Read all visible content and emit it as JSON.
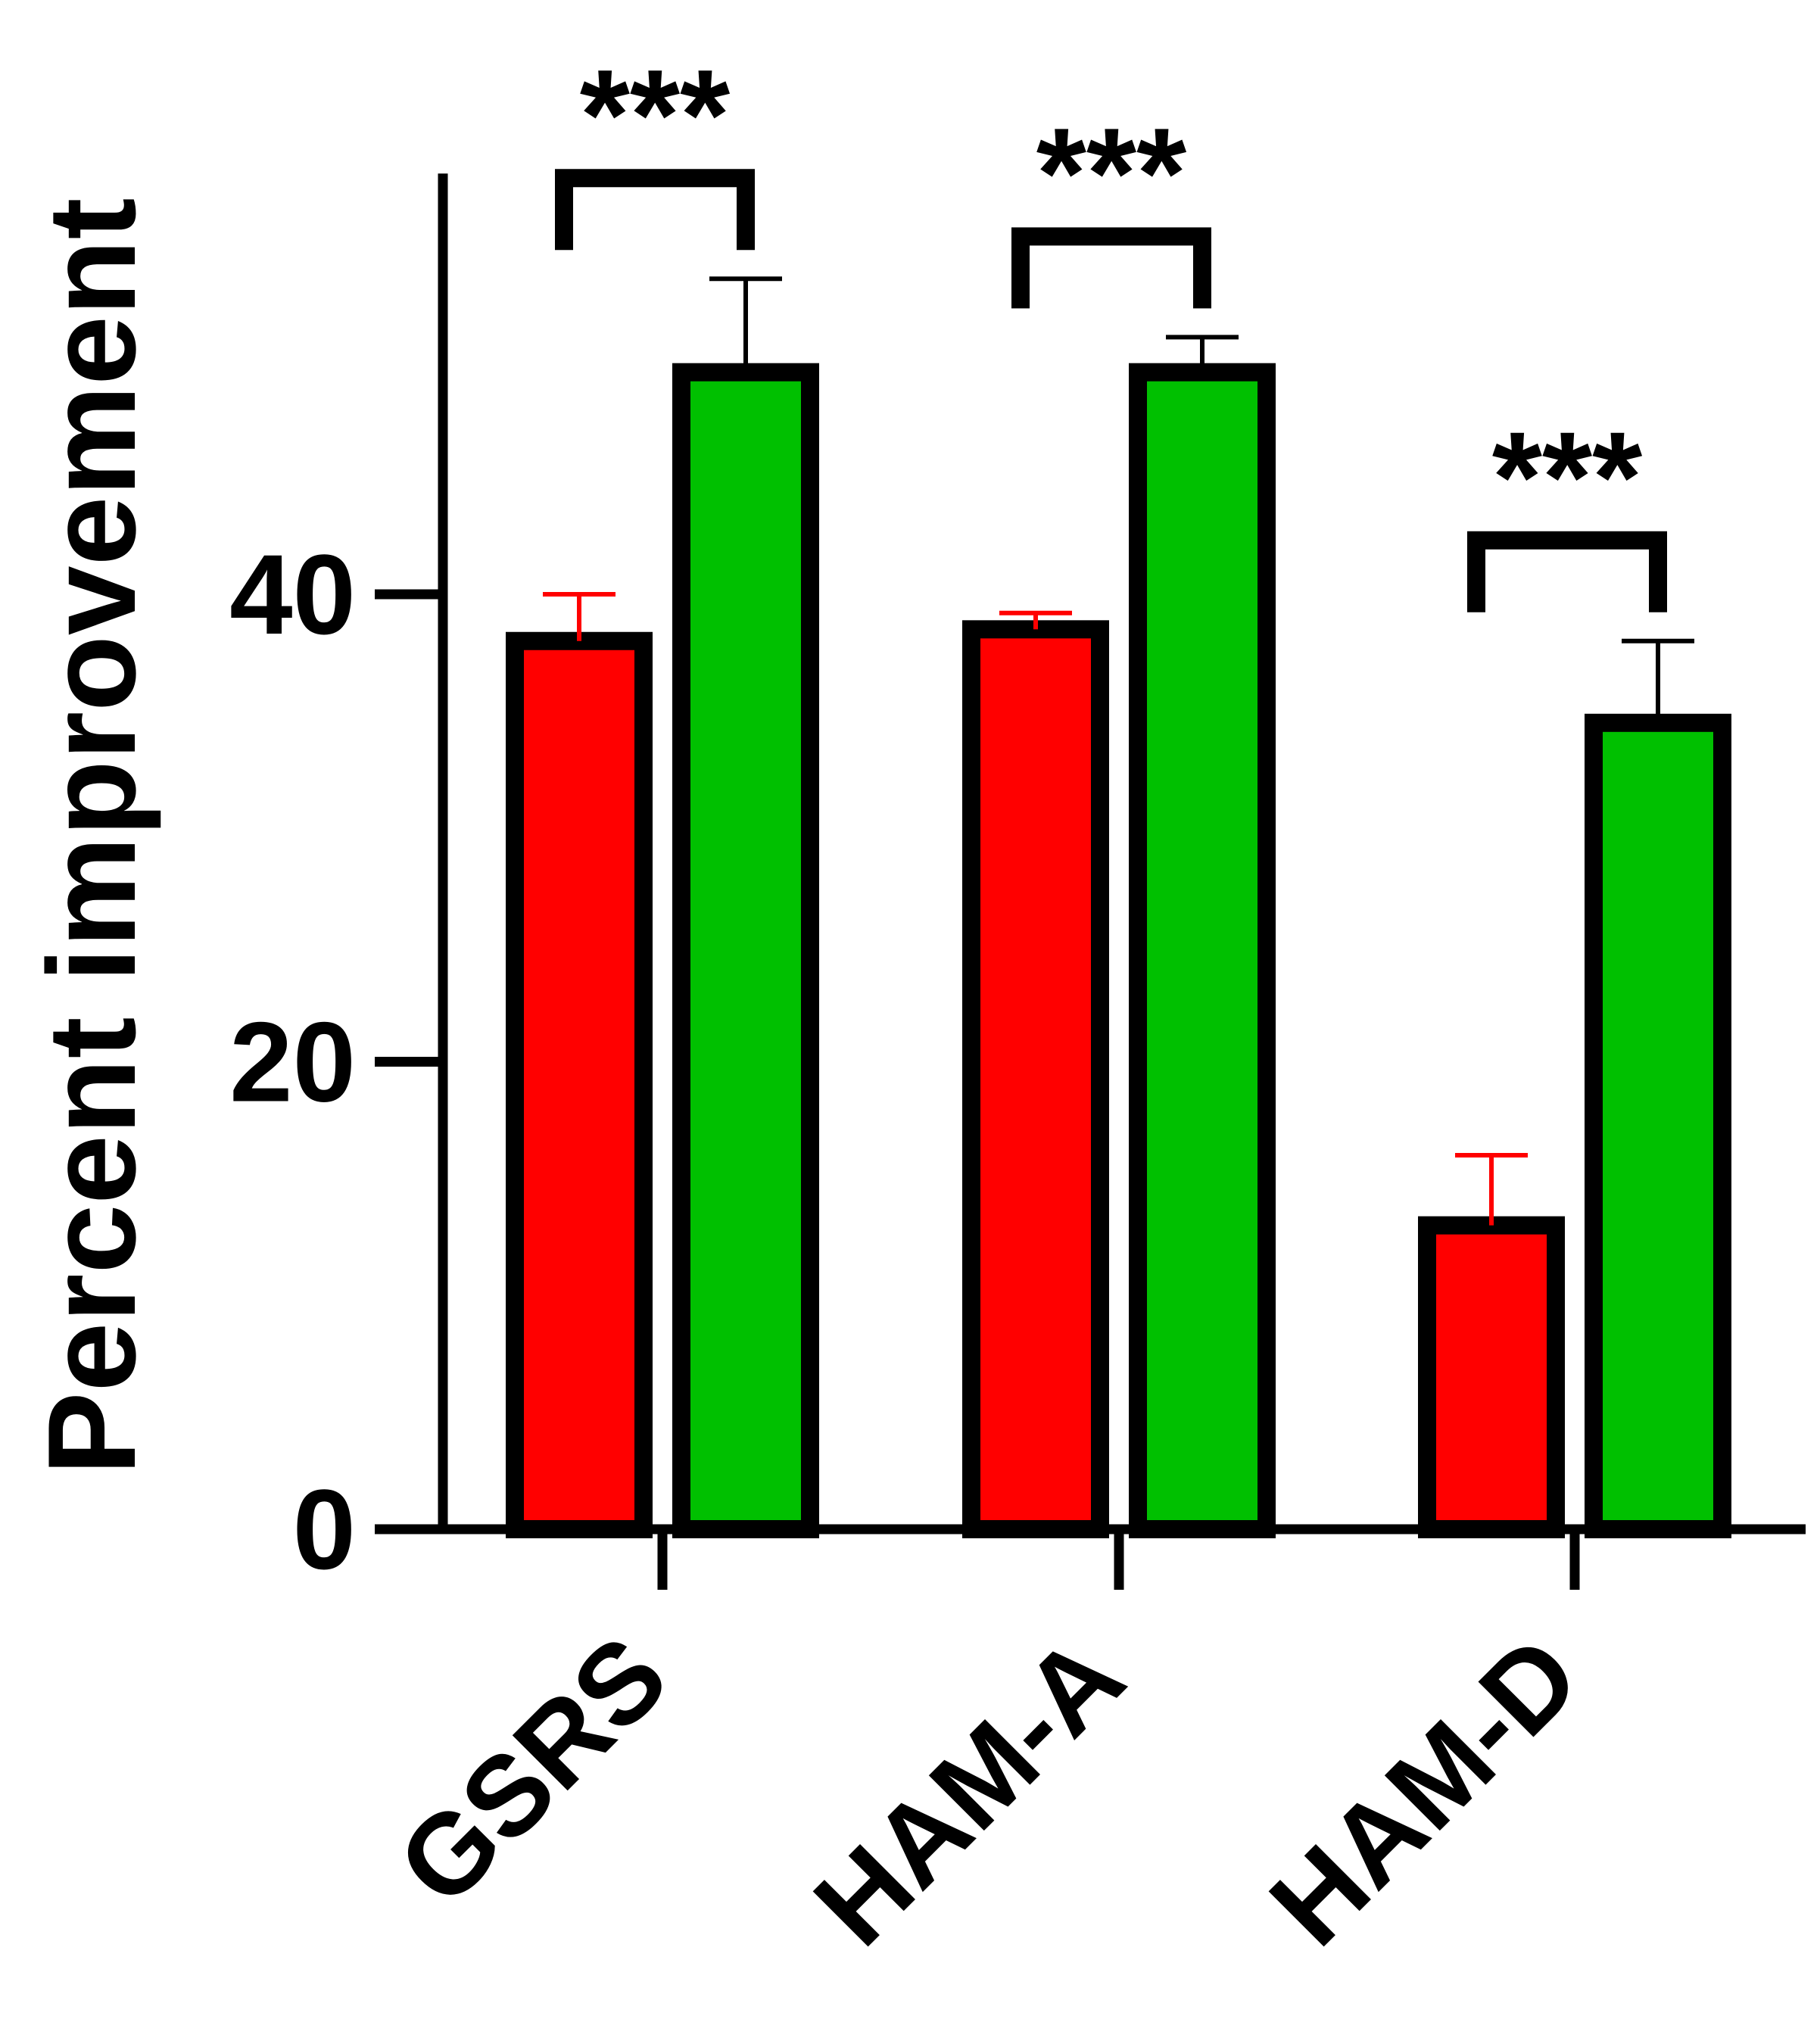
{
  "chart_data": {
    "type": "bar",
    "title": "",
    "xlabel": "",
    "ylabel": "Percent improvement",
    "categories": [
      "GSRS",
      "HAM-A",
      "HAM-D"
    ],
    "series": [
      {
        "values": [
          38,
          38.5,
          13
        ],
        "errors": [
          2,
          0.7,
          3
        ],
        "color": "#ff0000"
      },
      {
        "values": [
          49.5,
          49.5,
          34.5
        ],
        "errors": [
          4,
          1.5,
          3.5
        ],
        "color": "#00c000"
      }
    ],
    "ylim": [
      0,
      58
    ],
    "yticks": [
      0,
      20,
      40
    ],
    "significance": [
      "***",
      "***",
      "***"
    ],
    "grid": false,
    "legend": "none"
  }
}
